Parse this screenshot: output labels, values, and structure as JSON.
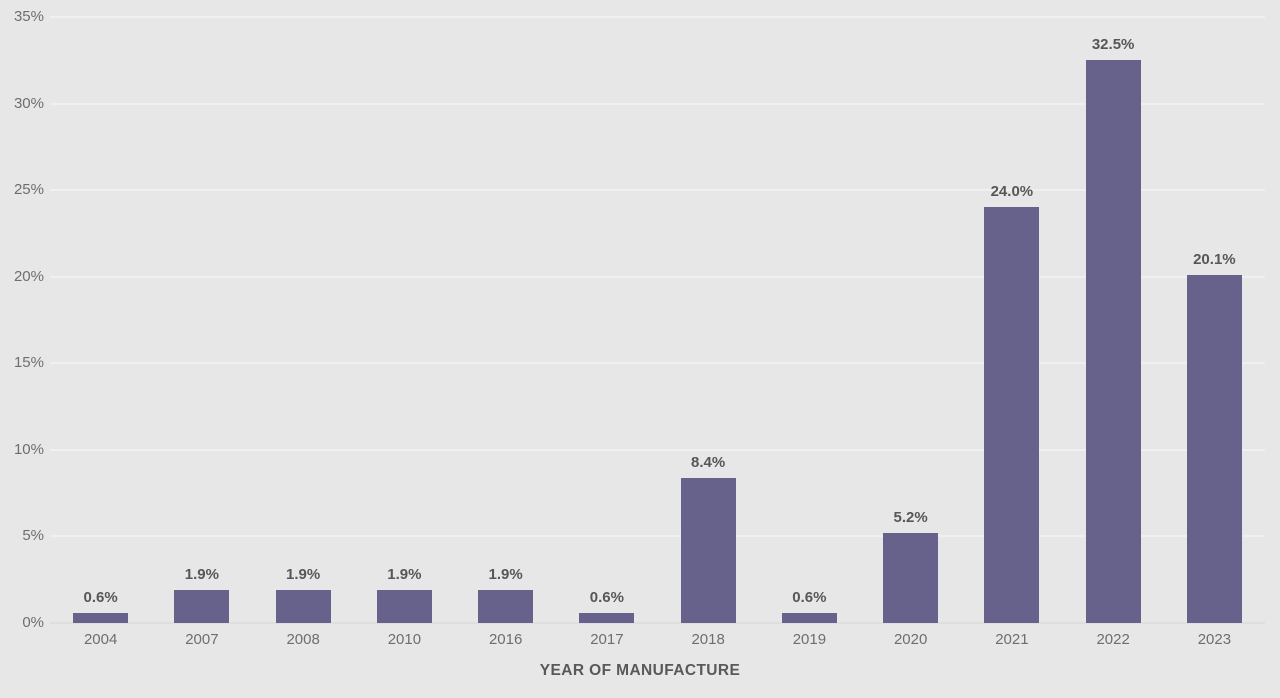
{
  "chart_data": {
    "type": "bar",
    "title": "",
    "xlabel": "YEAR OF MANUFACTURE",
    "ylabel": "",
    "categories": [
      "2004",
      "2007",
      "2008",
      "2010",
      "2016",
      "2017",
      "2018",
      "2019",
      "2020",
      "2021",
      "2022",
      "2023"
    ],
    "values": [
      0.6,
      1.9,
      1.9,
      1.9,
      1.9,
      0.6,
      8.4,
      0.6,
      5.2,
      24.0,
      32.5,
      20.1
    ],
    "data_labels": [
      "0.6%",
      "1.9%",
      "1.9%",
      "1.9%",
      "1.9%",
      "0.6%",
      "8.4%",
      "0.6%",
      "5.2%",
      "24.0%",
      "32.5%",
      "20.1%"
    ],
    "ylim": [
      0,
      35
    ],
    "yticks": [
      0,
      5,
      10,
      15,
      20,
      25,
      30,
      35
    ],
    "ytick_labels": [
      "0%",
      "5%",
      "10%",
      "15%",
      "20%",
      "25%",
      "30%",
      "35%"
    ],
    "grid": "horizontal",
    "legend": "none",
    "colors": {
      "bar": "#67628b",
      "background": "#e7e7e7",
      "gridline": "#f0f0f0",
      "zero_line": "#dedede",
      "data_label": "#575757",
      "tick_label": "#6e6e6e",
      "axis_title": "#595959"
    }
  }
}
